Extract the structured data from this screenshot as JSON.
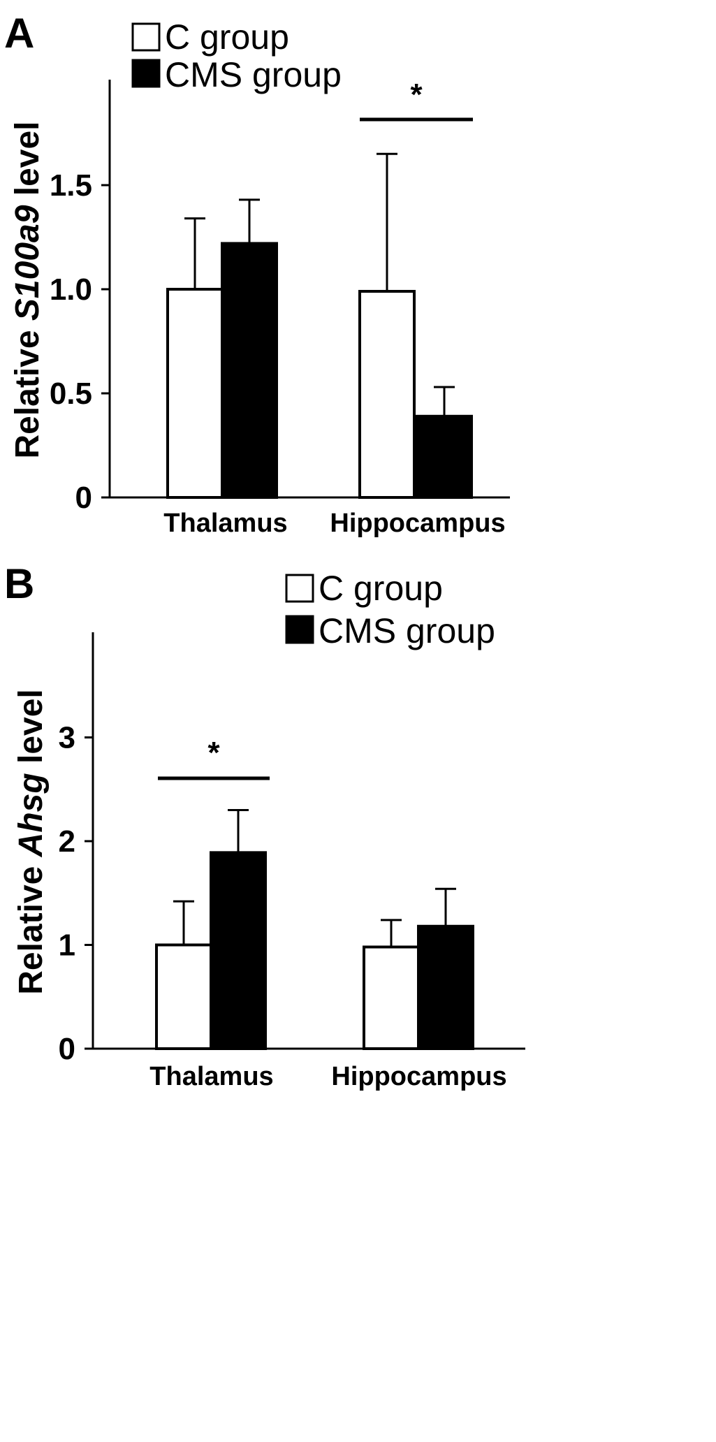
{
  "chart_data": [
    {
      "type": "bar",
      "panel_label": "A",
      "categories": [
        "Thalamus",
        "Hippocampus"
      ],
      "series": [
        {
          "name": "C group",
          "values": [
            1.0,
            0.99
          ],
          "errors": [
            0.34,
            0.66
          ],
          "color": "#ffffff"
        },
        {
          "name": "CMS group",
          "values": [
            1.22,
            0.39
          ],
          "errors": [
            0.21,
            0.14
          ],
          "color": "#000000"
        }
      ],
      "ylabel_prefix": "Relative ",
      "ylabel_italic": "S100a9",
      "ylabel_suffix": " level",
      "ylim": [
        0,
        2.0
      ],
      "yticks": [
        0,
        0.5,
        1.0,
        1.5
      ],
      "ytick_labels": [
        "0",
        "0.5",
        "1.0",
        "1.5"
      ],
      "significance": [
        {
          "category": "Hippocampus",
          "label": "*"
        }
      ],
      "legend_position": "top"
    },
    {
      "type": "bar",
      "panel_label": "B",
      "categories": [
        "Thalamus",
        "Hippocampus"
      ],
      "series": [
        {
          "name": "C group",
          "values": [
            1.0,
            0.98
          ],
          "errors": [
            0.42,
            0.26
          ],
          "color": "#ffffff"
        },
        {
          "name": "CMS group",
          "values": [
            1.89,
            1.18
          ],
          "errors": [
            0.41,
            0.36
          ],
          "color": "#000000"
        }
      ],
      "ylabel_prefix": "Relative ",
      "ylabel_italic": "Ahsg",
      "ylabel_suffix": " level",
      "ylim": [
        0,
        3.9
      ],
      "yticks": [
        0,
        1,
        2,
        3
      ],
      "ytick_labels": [
        "0",
        "1",
        "2",
        "3"
      ],
      "significance": [
        {
          "category": "Thalamus",
          "label": "*"
        }
      ],
      "legend_position": "top-right"
    }
  ]
}
